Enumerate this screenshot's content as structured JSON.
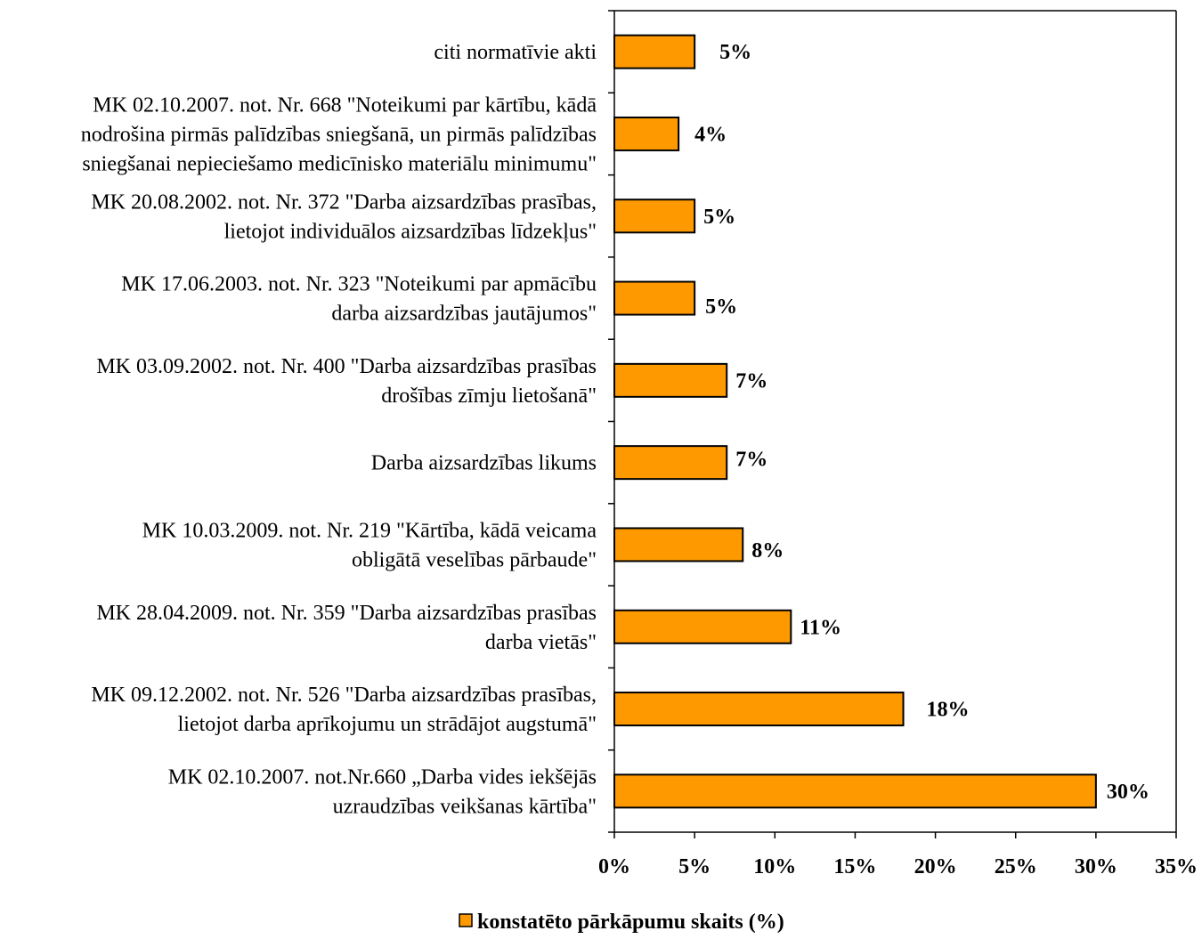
{
  "chart_data": {
    "type": "bar",
    "orientation": "horizontal",
    "title": "",
    "xlabel": "",
    "ylabel": "",
    "xlim": [
      0,
      35
    ],
    "x_ticks": [
      "0%",
      "5%",
      "10%",
      "15%",
      "20%",
      "25%",
      "30%",
      "35%"
    ],
    "grid": false,
    "legend_position": "bottom",
    "series": [
      {
        "name": "konstatēto pārkāpumu skaits (%)",
        "color": "#FF9900",
        "value_labels": [
          "5%",
          "4%",
          "5%",
          "5%",
          "7%",
          "7%",
          "8%",
          "11%",
          "18%",
          "30%"
        ],
        "values": [
          5,
          4,
          5,
          5,
          7,
          7,
          8,
          11,
          18,
          30
        ]
      }
    ],
    "categories": [
      [
        "citi normatīvie akti"
      ],
      [
        "MK 02.10.2007. not. Nr. 668 \"Noteikumi par kārtību, kādā",
        "nodrošina pirmās palīdzības sniegšanā, un pirmās palīdzības",
        "sniegšanai nepieciešamo medicīnisko materiālu minimumu\""
      ],
      [
        "MK 20.08.2002. not. Nr. 372 \"Darba aizsardzības prasības,",
        "lietojot individuālos aizsardzības līdzekļus\""
      ],
      [
        "MK 17.06.2003. not. Nr. 323 \"Noteikumi par apmācību",
        "darba aizsardzības jautājumos\""
      ],
      [
        "MK 03.09.2002. not. Nr. 400 \"Darba aizsardzības prasības",
        "drošības zīmju lietošanā\""
      ],
      [
        "Darba aizsardzības likums"
      ],
      [
        "MK 10.03.2009. not. Nr. 219 \"Kārtība, kādā veicama",
        "obligātā veselības pārbaude\""
      ],
      [
        "MK 28.04.2009. not. Nr. 359 \"Darba aizsardzības prasības",
        "darba vietās\""
      ],
      [
        "MK 09.12.2002. not. Nr. 526 \"Darba aizsardzības prasības,",
        "lietojot darba aprīkojumu un strādājot augstumā\""
      ],
      [
        "MK 02.10.2007. not.Nr.660 „Darba vides iekšējās",
        "uzraudzības veikšanas kārtība\""
      ]
    ]
  }
}
